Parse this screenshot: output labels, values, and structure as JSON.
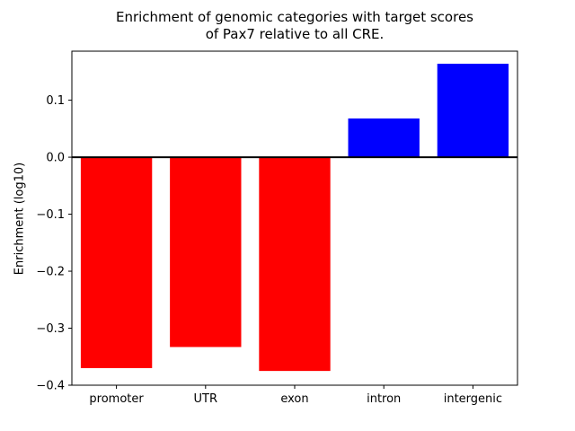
{
  "chart_data": {
    "type": "bar",
    "title_line1": "Enrichment of genomic categories with target scores",
    "title_line2": "of Pax7 relative to all CRE.",
    "xlabel": "",
    "ylabel": "Enrichment (log10)",
    "categories": [
      "promoter",
      "UTR",
      "exon",
      "intron",
      "intergenic"
    ],
    "values": [
      -0.37,
      -0.333,
      -0.375,
      0.068,
      0.164
    ],
    "ylim": [
      -0.4,
      0.186
    ],
    "yticks": [
      -0.4,
      -0.3,
      -0.2,
      -0.1,
      0.0,
      0.1
    ],
    "bar_width_fraction": 0.8,
    "bar_color_positive": "#0000ff",
    "bar_color_negative": "#ff0000",
    "zero_line_color": "#000000",
    "axis_color": "#000000",
    "background_color": "#ffffff",
    "grid": false,
    "legend": "none"
  }
}
